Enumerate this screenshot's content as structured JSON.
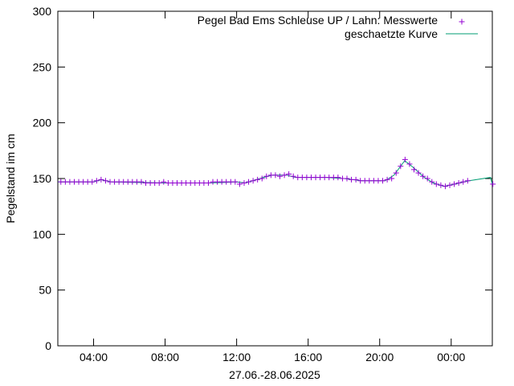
{
  "chart_data": {
    "type": "line",
    "ylabel": "Pegelstand im cm",
    "xlabel": "27.06.-28.06.2025",
    "ylim": [
      0,
      300
    ],
    "yticks": [
      0,
      50,
      100,
      150,
      200,
      250,
      300
    ],
    "x_range_hours": [
      2.0,
      26.3
    ],
    "xticks": [
      {
        "hour": 4,
        "label": "04:00"
      },
      {
        "hour": 8,
        "label": "08:00"
      },
      {
        "hour": 12,
        "label": "12:00"
      },
      {
        "hour": 16,
        "label": "16:00"
      },
      {
        "hour": 20,
        "label": "20:00"
      },
      {
        "hour": 24,
        "label": "00:00"
      }
    ],
    "grid": false,
    "legend_position": "top-right",
    "colors": {
      "measurements": "#9400d3",
      "curve": "#009e73",
      "axes": "#000000"
    },
    "series": [
      {
        "name": "Pegel Bad Ems Schleuse UP / Lahn: Messwerte",
        "style": "points",
        "marker": "plus",
        "points": [
          [
            2.17,
            147
          ],
          [
            2.42,
            147
          ],
          [
            2.67,
            147
          ],
          [
            2.92,
            147
          ],
          [
            3.17,
            147
          ],
          [
            3.42,
            147
          ],
          [
            3.67,
            147
          ],
          [
            3.92,
            147
          ],
          [
            4.17,
            148
          ],
          [
            4.42,
            149
          ],
          [
            4.67,
            148
          ],
          [
            4.92,
            147
          ],
          [
            5.17,
            147
          ],
          [
            5.42,
            147
          ],
          [
            5.67,
            147
          ],
          [
            5.92,
            147
          ],
          [
            6.17,
            147
          ],
          [
            6.42,
            147
          ],
          [
            6.67,
            147
          ],
          [
            6.92,
            146
          ],
          [
            7.17,
            146
          ],
          [
            7.42,
            146
          ],
          [
            7.67,
            146
          ],
          [
            7.92,
            147
          ],
          [
            8.17,
            146
          ],
          [
            8.42,
            146
          ],
          [
            8.67,
            146
          ],
          [
            8.92,
            146
          ],
          [
            9.17,
            146
          ],
          [
            9.42,
            146
          ],
          [
            9.67,
            146
          ],
          [
            9.92,
            146
          ],
          [
            10.17,
            146
          ],
          [
            10.42,
            146
          ],
          [
            10.67,
            147
          ],
          [
            10.92,
            147
          ],
          [
            11.17,
            147
          ],
          [
            11.42,
            147
          ],
          [
            11.67,
            147
          ],
          [
            11.92,
            147
          ],
          [
            12.17,
            145
          ],
          [
            12.42,
            146
          ],
          [
            12.67,
            147
          ],
          [
            12.92,
            148
          ],
          [
            13.17,
            149
          ],
          [
            13.42,
            150
          ],
          [
            13.67,
            152
          ],
          [
            13.92,
            153
          ],
          [
            14.17,
            153
          ],
          [
            14.42,
            152
          ],
          [
            14.67,
            153
          ],
          [
            14.92,
            154
          ],
          [
            15.17,
            152
          ],
          [
            15.42,
            151
          ],
          [
            15.67,
            151
          ],
          [
            15.92,
            151
          ],
          [
            16.17,
            151
          ],
          [
            16.42,
            151
          ],
          [
            16.67,
            151
          ],
          [
            16.92,
            151
          ],
          [
            17.17,
            151
          ],
          [
            17.42,
            151
          ],
          [
            17.67,
            151
          ],
          [
            17.92,
            150
          ],
          [
            18.17,
            150
          ],
          [
            18.42,
            149
          ],
          [
            18.67,
            149
          ],
          [
            18.92,
            148
          ],
          [
            19.17,
            148
          ],
          [
            19.42,
            148
          ],
          [
            19.67,
            148
          ],
          [
            19.92,
            148
          ],
          [
            20.17,
            148
          ],
          [
            20.42,
            149
          ],
          [
            20.67,
            150
          ],
          [
            20.92,
            155
          ],
          [
            21.17,
            161
          ],
          [
            21.42,
            167
          ],
          [
            21.67,
            163
          ],
          [
            21.92,
            158
          ],
          [
            22.17,
            155
          ],
          [
            22.42,
            152
          ],
          [
            22.67,
            150
          ],
          [
            22.92,
            147
          ],
          [
            23.17,
            145
          ],
          [
            23.42,
            144
          ],
          [
            23.67,
            143
          ],
          [
            23.92,
            144
          ],
          [
            24.17,
            145
          ],
          [
            24.42,
            146
          ],
          [
            24.67,
            147
          ],
          [
            24.92,
            148
          ],
          [
            26.33,
            145
          ]
        ]
      },
      {
        "name": "geschaetzte Kurve",
        "style": "line",
        "points": [
          [
            2.0,
            147
          ],
          [
            4.0,
            147
          ],
          [
            4.42,
            149
          ],
          [
            5.0,
            147
          ],
          [
            8.0,
            146
          ],
          [
            10.5,
            146
          ],
          [
            12.0,
            147
          ],
          [
            12.5,
            146
          ],
          [
            13.5,
            151
          ],
          [
            14.0,
            153
          ],
          [
            14.8,
            153
          ],
          [
            15.3,
            151
          ],
          [
            17.0,
            151
          ],
          [
            18.0,
            150
          ],
          [
            19.0,
            148
          ],
          [
            20.3,
            148
          ],
          [
            20.8,
            153
          ],
          [
            21.4,
            166
          ],
          [
            21.8,
            161
          ],
          [
            22.5,
            151
          ],
          [
            23.0,
            146
          ],
          [
            23.6,
            143
          ],
          [
            24.2,
            145
          ],
          [
            25.0,
            148
          ],
          [
            26.2,
            151
          ],
          [
            26.3,
            145
          ]
        ]
      }
    ]
  }
}
